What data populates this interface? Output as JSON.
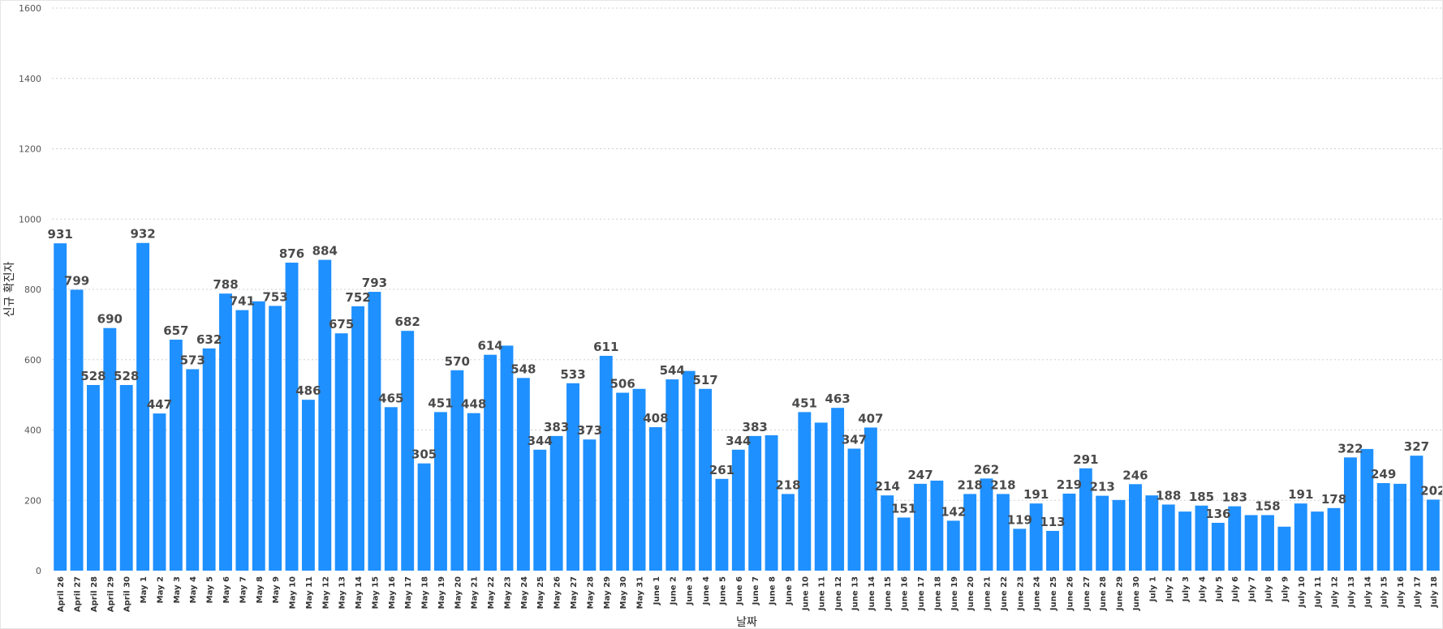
{
  "chart_data": {
    "type": "bar",
    "title": "",
    "xlabel": "날짜",
    "ylabel": "신규 확진자",
    "ylim": [
      0,
      1600
    ],
    "yticks": [
      0,
      200,
      400,
      600,
      800,
      1000,
      1200,
      1400,
      1600
    ],
    "grid": true,
    "legend": "none",
    "bar_color": "#1E90FF",
    "categories": [
      "April 26",
      "April 27",
      "April 28",
      "April 29",
      "April 30",
      "May 1",
      "May 2",
      "May 3",
      "May 4",
      "May 5",
      "May 6",
      "May 7",
      "May 8",
      "May 9",
      "May 10",
      "May 11",
      "May 12",
      "May 13",
      "May 14",
      "May 15",
      "May 16",
      "May 17",
      "May 18",
      "May 19",
      "May 20",
      "May 21",
      "May 22",
      "May 23",
      "May 24",
      "May 25",
      "May 26",
      "May 27",
      "May 28",
      "May 29",
      "May 30",
      "May 31",
      "June 1",
      "June 2",
      "June 3",
      "June 4",
      "June 5",
      "June 6",
      "June 7",
      "June 8",
      "June 9",
      "June 10",
      "June 11",
      "June 12",
      "June 13",
      "June 14",
      "June 15",
      "June 16",
      "June 17",
      "June 18",
      "June 19",
      "June 20",
      "June 21",
      "June 22",
      "June 23",
      "June 24",
      "June 25",
      "June 26",
      "June 27",
      "June 28",
      "June 29",
      "June 30",
      "July 1",
      "July 2",
      "July 3",
      "July 4",
      "July 5",
      "July 6",
      "July 7",
      "July 8",
      "July 9",
      "July 10",
      "July 11",
      "July 12",
      "July 13",
      "July 14",
      "July 15",
      "July 16",
      "July 17",
      "July 18"
    ],
    "values": [
      931,
      799,
      528,
      690,
      528,
      932,
      447,
      657,
      573,
      632,
      788,
      741,
      766,
      753,
      876,
      486,
      884,
      675,
      752,
      793,
      465,
      682,
      305,
      451,
      570,
      448,
      614,
      640,
      548,
      344,
      383,
      533,
      373,
      611,
      506,
      517,
      408,
      544,
      568,
      517,
      261,
      344,
      383,
      385,
      218,
      451,
      421,
      463,
      347,
      407,
      214,
      151,
      247,
      256,
      142,
      218,
      262,
      218,
      119,
      191,
      113,
      219,
      291,
      213,
      201,
      246,
      214,
      188,
      168,
      185,
      136,
      183,
      158,
      158,
      125,
      191,
      168,
      178,
      322,
      346,
      249,
      247,
      327,
      202
    ],
    "labels": [
      "931",
      "799",
      "528",
      "690",
      "528",
      "932",
      "447",
      "657",
      "573",
      "632",
      "788",
      "741",
      "",
      "753",
      "876",
      "486",
      "884",
      "675",
      "752",
      "793",
      "465",
      "682",
      "305",
      "451",
      "570",
      "448",
      "614",
      "",
      "548",
      "344",
      "383",
      "533",
      "373",
      "611",
      "506",
      "",
      "408",
      "544",
      "",
      "517",
      "261",
      "344",
      "383",
      "",
      "218",
      "451",
      "",
      "463",
      "347",
      "407",
      "214",
      "151",
      "247",
      "",
      "142",
      "218",
      "262",
      "218",
      "119",
      "191",
      "113",
      "219",
      "291",
      "213",
      "",
      "246",
      "",
      "188",
      "",
      "185",
      "136",
      "183",
      "",
      "158",
      "",
      "191",
      "",
      "178",
      "322",
      "",
      "249",
      "",
      "327",
      "202"
    ]
  }
}
